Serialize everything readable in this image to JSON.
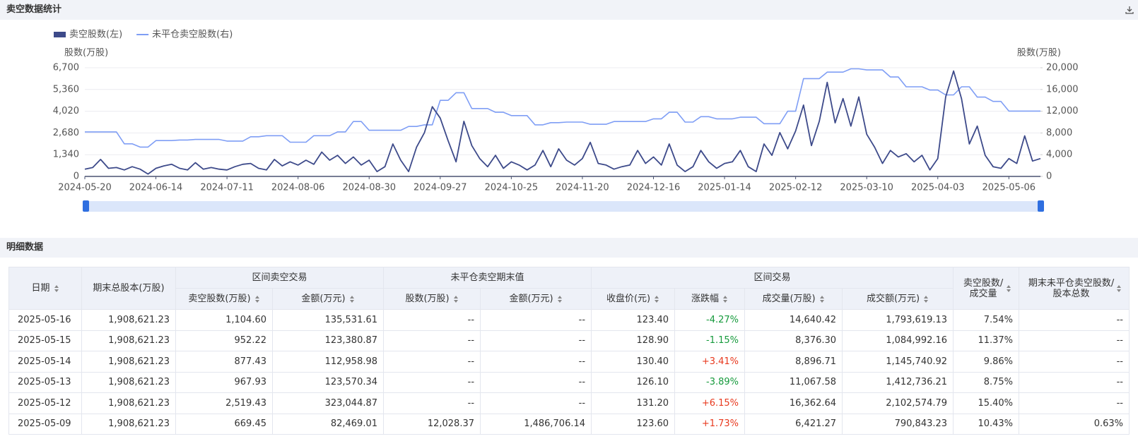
{
  "header": {
    "title": "卖空数据统计"
  },
  "chart_data": {
    "type": "line",
    "y_label": "股数(万股)",
    "y2_label": "股数(万股)",
    "categories": [
      "2024-05-20",
      null,
      null,
      null,
      null,
      null,
      null,
      null,
      null,
      "2024-06-14",
      null,
      null,
      null,
      null,
      null,
      null,
      null,
      null,
      "2024-07-11",
      null,
      null,
      null,
      null,
      null,
      null,
      null,
      null,
      "2024-08-06",
      null,
      null,
      null,
      null,
      null,
      null,
      null,
      null,
      "2024-08-30",
      null,
      null,
      null,
      null,
      null,
      null,
      null,
      null,
      "2024-09-27",
      null,
      null,
      null,
      null,
      null,
      null,
      null,
      null,
      "2024-10-25",
      null,
      null,
      null,
      null,
      null,
      null,
      null,
      null,
      "2024-11-20",
      null,
      null,
      null,
      null,
      null,
      null,
      null,
      null,
      "2024-12-16",
      null,
      null,
      null,
      null,
      null,
      null,
      null,
      null,
      "2025-01-14",
      null,
      null,
      null,
      null,
      null,
      null,
      null,
      null,
      "2025-02-12",
      null,
      null,
      null,
      null,
      null,
      null,
      null,
      null,
      "2025-03-10",
      null,
      null,
      null,
      null,
      null,
      null,
      null,
      null,
      "2025-04-03",
      null,
      null,
      null,
      null,
      null,
      null,
      null,
      null,
      "2025-05-06",
      null,
      null,
      null,
      null
    ],
    "series": [
      {
        "name": "卖空股数(左)",
        "color": "#3d4a8a",
        "axis": "y",
        "values": [
          450,
          550,
          1050,
          500,
          550,
          400,
          600,
          450,
          150,
          500,
          650,
          750,
          500,
          400,
          850,
          450,
          550,
          450,
          400,
          600,
          750,
          800,
          500,
          400,
          1050,
          650,
          900,
          700,
          1000,
          750,
          1500,
          1000,
          1300,
          800,
          1200,
          700,
          1000,
          300,
          600,
          2000,
          1000,
          300,
          1800,
          2700,
          4300,
          3600,
          2200,
          900,
          3400,
          1900,
          1100,
          600,
          1300,
          500,
          900,
          700,
          400,
          700,
          1600,
          600,
          1700,
          1000,
          700,
          1100,
          2100,
          800,
          700,
          450,
          600,
          700,
          1600,
          800,
          1200,
          700,
          2000,
          700,
          300,
          600,
          1600,
          900,
          500,
          800,
          900,
          1600,
          600,
          300,
          2000,
          1300,
          2700,
          1700,
          2800,
          4400,
          1900,
          3400,
          5800,
          3300,
          4800,
          3100,
          4900,
          2600,
          1800,
          800,
          1600,
          1200,
          1400,
          900,
          1300,
          400,
          1100,
          4900,
          6500,
          4800,
          2000,
          3100,
          1300,
          600,
          500,
          1100,
          800,
          2500,
          950,
          1100
        ]
      },
      {
        "name": "未平仓卖空股数(右)",
        "color": "#7f9ef5",
        "axis": "y2",
        "values": [
          8200,
          8200,
          8200,
          8200,
          8200,
          6000,
          6000,
          5400,
          5400,
          6600,
          6600,
          6600,
          6700,
          6700,
          6800,
          6800,
          6800,
          6800,
          6500,
          6500,
          6500,
          7300,
          7300,
          7500,
          7500,
          7500,
          6300,
          6300,
          6300,
          7500,
          7500,
          7500,
          8200,
          8200,
          10100,
          10100,
          8500,
          8500,
          8500,
          8500,
          8500,
          9200,
          9200,
          9500,
          9500,
          14000,
          14000,
          15400,
          15400,
          12500,
          12500,
          12500,
          11800,
          11800,
          11200,
          11200,
          11200,
          9500,
          9500,
          9900,
          9900,
          10000,
          10000,
          10000,
          9600,
          9600,
          9600,
          10100,
          10100,
          10100,
          10100,
          10100,
          10600,
          10600,
          11800,
          11800,
          10000,
          10000,
          11000,
          11000,
          10600,
          10600,
          10600,
          10900,
          10900,
          10900,
          9700,
          9700,
          9700,
          12000,
          12000,
          18000,
          18000,
          18000,
          19200,
          19200,
          19200,
          19800,
          19800,
          19600,
          19600,
          19600,
          18300,
          18300,
          16500,
          16500,
          16500,
          15900,
          15900,
          15000,
          15000,
          16500,
          16500,
          14600,
          14600,
          13800,
          13800,
          12028,
          12028,
          12028,
          12028,
          12028
        ]
      }
    ],
    "ylim": [
      0,
      6700
    ],
    "yticks": [
      0,
      {
        "value": 1340,
        "label": "1,340"
      },
      {
        "value": 2680,
        "label": "2,680"
      },
      {
        "value": 4020,
        "label": "4,020"
      },
      {
        "value": 5360,
        "label": "5,360"
      },
      {
        "value": 6700,
        "label": "6,700"
      }
    ],
    "y2lim": [
      0,
      20000
    ],
    "y2ticks": [
      0,
      {
        "value": 4000,
        "label": "4,000"
      },
      {
        "value": 8000,
        "label": "8,000"
      },
      {
        "value": 12000,
        "label": "12,000"
      },
      {
        "value": 16000,
        "label": "16,000"
      },
      {
        "value": 20000,
        "label": "20,000"
      }
    ],
    "grid": true
  },
  "detail": {
    "title": "明细数据"
  },
  "table": {
    "head_top": [
      "日期",
      "期末总股本(万股)",
      "区间卖空交易",
      "未平仓卖空期末值",
      "区间交易",
      "卖空股数/成交量",
      "期末未平仓卖空股数/股本总数"
    ],
    "head_sub": [
      "卖空股数(万股)",
      "金额(万元)",
      "股数(万股)",
      "金额(万元)",
      "收盘价(元)",
      "涨跌幅",
      "成交量(万股)",
      "成交额(万元)"
    ],
    "rows": [
      [
        "2025-05-16",
        "1,908,621.23",
        "1,104.60",
        "135,531.61",
        "--",
        "--",
        "123.40",
        "-4.27%",
        "14,640.42",
        "1,793,619.13",
        "7.54%",
        "--"
      ],
      [
        "2025-05-15",
        "1,908,621.23",
        "952.22",
        "123,380.87",
        "--",
        "--",
        "128.90",
        "-1.15%",
        "8,376.30",
        "1,084,992.16",
        "11.37%",
        "--"
      ],
      [
        "2025-05-14",
        "1,908,621.23",
        "877.43",
        "112,958.98",
        "--",
        "--",
        "130.40",
        "+3.41%",
        "8,896.71",
        "1,145,740.92",
        "9.86%",
        "--"
      ],
      [
        "2025-05-13",
        "1,908,621.23",
        "967.93",
        "123,570.34",
        "--",
        "--",
        "126.10",
        "-3.89%",
        "11,067.58",
        "1,412,736.21",
        "8.75%",
        "--"
      ],
      [
        "2025-05-12",
        "1,908,621.23",
        "2,519.43",
        "323,044.87",
        "--",
        "--",
        "131.20",
        "+6.15%",
        "16,362.64",
        "2,102,574.79",
        "15.40%",
        "--"
      ],
      [
        "2025-05-09",
        "1,908,621.23",
        "669.45",
        "82,469.01",
        "12,028.37",
        "1,486,706.14",
        "123.60",
        "+1.73%",
        "6,421.27",
        "790,843.23",
        "10.43%",
        "0.63%"
      ]
    ]
  }
}
